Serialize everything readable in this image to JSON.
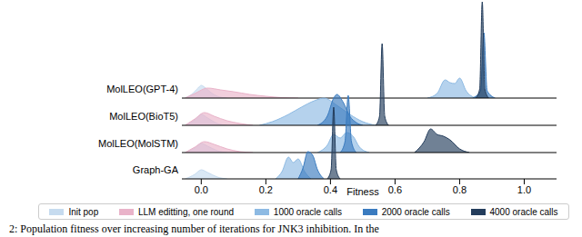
{
  "chart_data": {
    "type": "density",
    "xlabel": "Fitness",
    "caption": "2: Population fitness over increasing number of iterations for JNK3 inhibition. In the",
    "xlim": [
      -0.06,
      1.1
    ],
    "xticks": [
      {
        "value": 0,
        "label": "0.0"
      },
      0.2,
      0.4,
      0.6,
      0.8,
      {
        "value": 1,
        "label": "1.0"
      }
    ],
    "ylim": [
      0,
      110
    ],
    "tick_labels": "x",
    "grid": false,
    "legend": "bottom",
    "series": [
      {
        "name": "Init pop",
        "color": "#c6dbef"
      },
      {
        "name": "LLM editting, one round",
        "color": "#e9b3c9"
      },
      {
        "name": "1000 oracle calls",
        "color": "#8dbae3"
      },
      {
        "name": "2000 oracle calls",
        "color": "#3a7bbf"
      },
      {
        "name": "4000 oracle calls",
        "color": "#243d5c"
      }
    ],
    "rows": [
      {
        "name": "MolLEO(GPT-4)",
        "curves": [
          {
            "series": "Init pop",
            "x": [
              -0.05,
              -0.03,
              -0.01,
              0,
              0.01,
              0.03,
              0.05,
              0.08
            ],
            "values": [
              0,
              4,
              11,
              14,
              12,
              6,
              2,
              0
            ]
          },
          {
            "series": "LLM editting, one round",
            "x": [
              -0.05,
              -0.02,
              0.02,
              0.06,
              0.1,
              0.15,
              0.2,
              0.25,
              0.3
            ],
            "values": [
              0,
              5,
              11,
              9,
              7,
              4,
              2,
              0.5,
              0
            ]
          },
          {
            "series": "1000 oracle calls",
            "x": [
              0.7,
              0.73,
              0.755,
              0.77,
              0.785,
              0.8,
              0.82,
              0.85
            ],
            "values": [
              0,
              5,
              20,
              17,
              16,
              22,
              8,
              0
            ]
          },
          {
            "series": "2000 oracle calls",
            "x": [
              0.84,
              0.865,
              0.875,
              0.885,
              0.91
            ],
            "values": [
              0,
              8,
              72,
              8,
              0
            ]
          },
          {
            "series": "4000 oracle calls",
            "x": [
              0.85,
              0.862,
              0.87,
              0.878,
              0.89
            ],
            "values": [
              0,
              10,
              106,
              10,
              0
            ]
          }
        ]
      },
      {
        "name": "MolLEO(BioT5)",
        "curves": [
          {
            "series": "Init pop",
            "x": [
              -0.05,
              -0.02,
              0,
              0.02,
              0.05,
              0.08
            ],
            "values": [
              0,
              6,
              12,
              8,
              2,
              0
            ]
          },
          {
            "series": "LLM editting, one round",
            "x": [
              -0.05,
              -0.02,
              0.01,
              0.04,
              0.08,
              0.12,
              0.16
            ],
            "values": [
              0,
              7,
              14,
              10,
              5,
              2,
              0
            ]
          },
          {
            "series": "1000 oracle calls",
            "x": [
              0.18,
              0.22,
              0.27,
              0.31,
              0.35,
              0.38,
              0.42,
              0.46,
              0.5,
              0.54
            ],
            "values": [
              0,
              4,
              12,
              20,
              27,
              30,
              22,
              12,
              4,
              0
            ]
          },
          {
            "series": "2000 oracle calls",
            "x": [
              0.36,
              0.39,
              0.41,
              0.42,
              0.44,
              0.46,
              0.48,
              0.5
            ],
            "values": [
              0,
              10,
              30,
              34,
              25,
              10,
              3,
              0
            ]
          },
          {
            "series": "4000 oracle calls",
            "x": [
              0.54,
              0.552,
              0.56,
              0.568,
              0.58
            ],
            "values": [
              0,
              10,
              90,
              10,
              0
            ]
          }
        ]
      },
      {
        "name": "MolLEO(MolSTM)",
        "curves": [
          {
            "series": "Init pop",
            "x": [
              -0.05,
              -0.02,
              0,
              0.02,
              0.05,
              0.08
            ],
            "values": [
              0,
              5,
              10,
              7,
              2,
              0
            ]
          },
          {
            "series": "LLM editting, one round",
            "x": [
              -0.05,
              -0.02,
              0.01,
              0.04,
              0.08,
              0.12,
              0.16
            ],
            "values": [
              0,
              6,
              12,
              9,
              4,
              1,
              0
            ]
          },
          {
            "series": "1000 oracle calls",
            "x": [
              0.36,
              0.39,
              0.41,
              0.43,
              0.45,
              0.47,
              0.49,
              0.52
            ],
            "values": [
              0,
              8,
              20,
              16,
              22,
              18,
              6,
              0
            ]
          },
          {
            "series": "2000 oracle calls",
            "x": [
              0.43,
              0.445,
              0.455,
              0.465,
              0.48
            ],
            "values": [
              0,
              12,
              63,
              12,
              0
            ]
          },
          {
            "series": "4000 oracle calls",
            "x": [
              0.66,
              0.69,
              0.71,
              0.73,
              0.75,
              0.77,
              0.8,
              0.83
            ],
            "values": [
              0,
              12,
              26,
              20,
              18,
              14,
              4,
              0
            ]
          }
        ]
      },
      {
        "name": "Graph-GA",
        "curves": [
          {
            "series": "Init pop",
            "x": [
              -0.05,
              -0.02,
              0,
              0.02,
              0.05,
              0.08
            ],
            "values": [
              0,
              5,
              10,
              7,
              2,
              0
            ]
          },
          {
            "series": "1000 oracle calls",
            "x": [
              0.23,
              0.25,
              0.27,
              0.285,
              0.3,
              0.32,
              0.34
            ],
            "values": [
              0,
              8,
              24,
              18,
              22,
              8,
              0
            ]
          },
          {
            "series": "2000 oracle calls",
            "x": [
              0.3,
              0.315,
              0.33,
              0.345,
              0.36,
              0.38
            ],
            "values": [
              0,
              12,
              30,
              26,
              10,
              0
            ]
          },
          {
            "series": "4000 oracle calls",
            "x": [
              0.39,
              0.402,
              0.41,
              0.418,
              0.43
            ],
            "values": [
              0,
              10,
              79,
              10,
              0
            ]
          }
        ]
      }
    ]
  }
}
